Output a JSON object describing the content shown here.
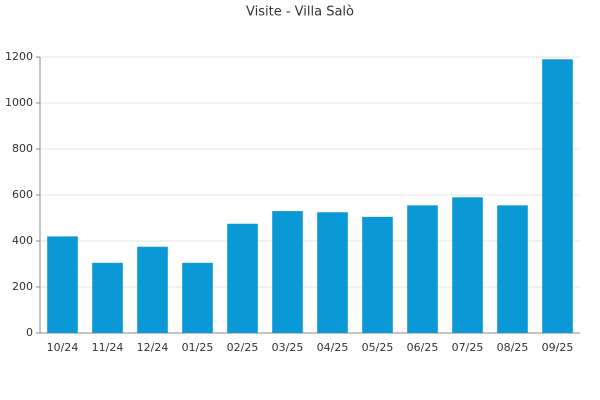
{
  "chart_data": {
    "type": "bar",
    "title": "Visite - Villa Salò",
    "categories": [
      "10/24",
      "11/24",
      "12/24",
      "01/25",
      "02/25",
      "03/25",
      "04/25",
      "05/25",
      "06/25",
      "07/25",
      "08/25",
      "09/25"
    ],
    "values": [
      420,
      305,
      375,
      305,
      475,
      530,
      525,
      505,
      555,
      590,
      555,
      1190
    ],
    "color": "#0a98d6",
    "ylim": [
      0,
      1200
    ],
    "yticks": [
      0,
      200,
      400,
      600,
      800,
      1000,
      1200
    ],
    "grid": true
  }
}
